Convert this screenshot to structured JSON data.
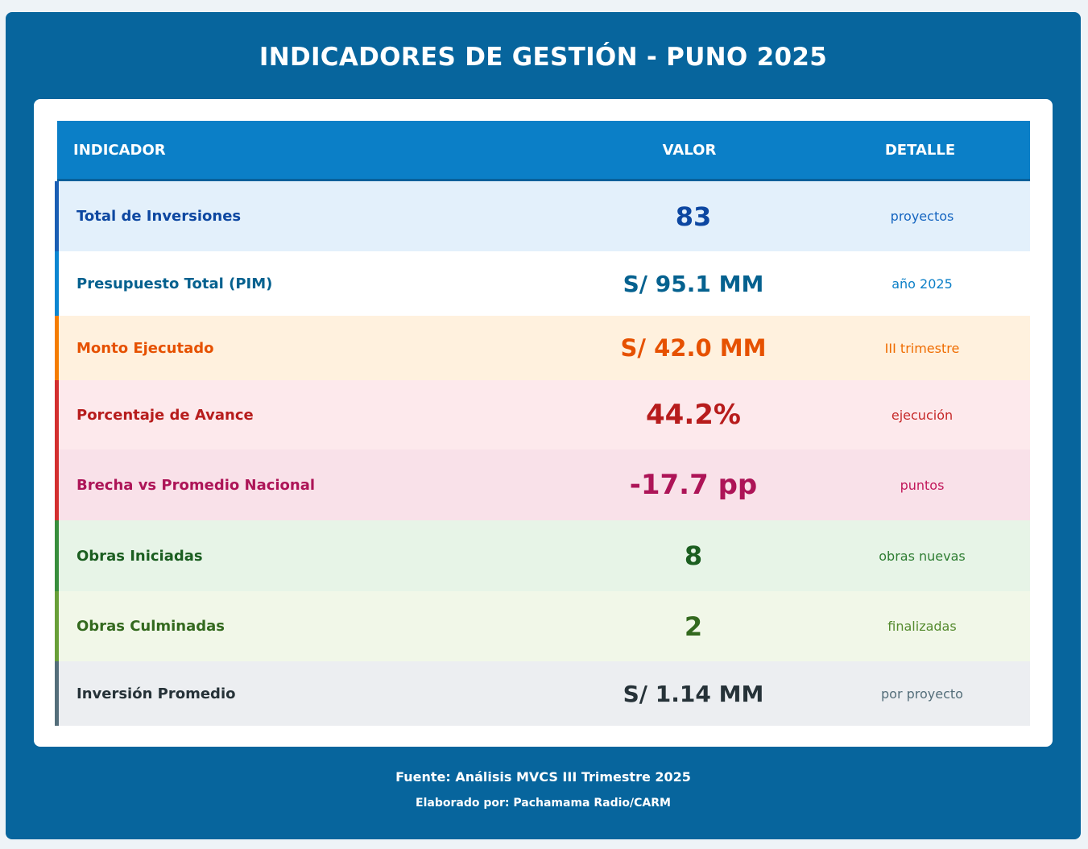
{
  "title": "INDICADORES DE GESTIÓN - PUNO 2025",
  "headers": {
    "indicador": "INDICADOR",
    "valor": "VALOR",
    "detalle": "DETALLE"
  },
  "rows": [
    {
      "label": "Total de Inversiones",
      "value": "83",
      "detail": "proyectos",
      "bg": "#e3f0fb",
      "border": "#1a5fb4",
      "color": "#0d47a1",
      "detail_color": "#1565c0"
    },
    {
      "label": "Presupuesto Total (PIM)",
      "value": "S/ 95.1 MM",
      "detail": "año 2025",
      "bg": "#ffffff",
      "border": "#0b86d1",
      "color": "#05618f",
      "detail_color": "#0b7fc7"
    },
    {
      "label": "Monto Ejecutado",
      "value": "S/ 42.0 MM",
      "detail": "III trimestre",
      "bg": "#fff1de",
      "border": "#f57c00",
      "color": "#e65100",
      "detail_color": "#ef6c00"
    },
    {
      "label": "Porcentaje de Avance",
      "value": "44.2%",
      "detail": "ejecución",
      "bg": "#fde9ec",
      "border": "#d32f2f",
      "color": "#b71c1c",
      "detail_color": "#c62828"
    },
    {
      "label": "Brecha vs Promedio Nacional",
      "value": "-17.7 pp",
      "detail": "puntos",
      "bg": "#f9e1e9",
      "border": "#d32f2f",
      "color": "#ad1457",
      "detail_color": "#c2185b"
    },
    {
      "label": "Obras Iniciadas",
      "value": "8",
      "detail": "obras nuevas",
      "bg": "#e7f4e7",
      "border": "#388e3c",
      "color": "#1b5e20",
      "detail_color": "#2e7d32"
    },
    {
      "label": "Obras Culminadas",
      "value": "2",
      "detail": "finalizadas",
      "bg": "#f1f7e8",
      "border": "#689f38",
      "color": "#33691e",
      "detail_color": "#558b2f"
    },
    {
      "label": "Inversión Promedio",
      "value": "S/ 1.14 MM",
      "detail": "por proyecto",
      "bg": "#eceef1",
      "border": "#546e7a",
      "color": "#263238",
      "detail_color": "#546e7a"
    }
  ],
  "footer": {
    "source": "Fuente: Análisis MVCS III Trimestre 2025",
    "author": "Elaborado por: Pachamama Radio/CARM"
  }
}
